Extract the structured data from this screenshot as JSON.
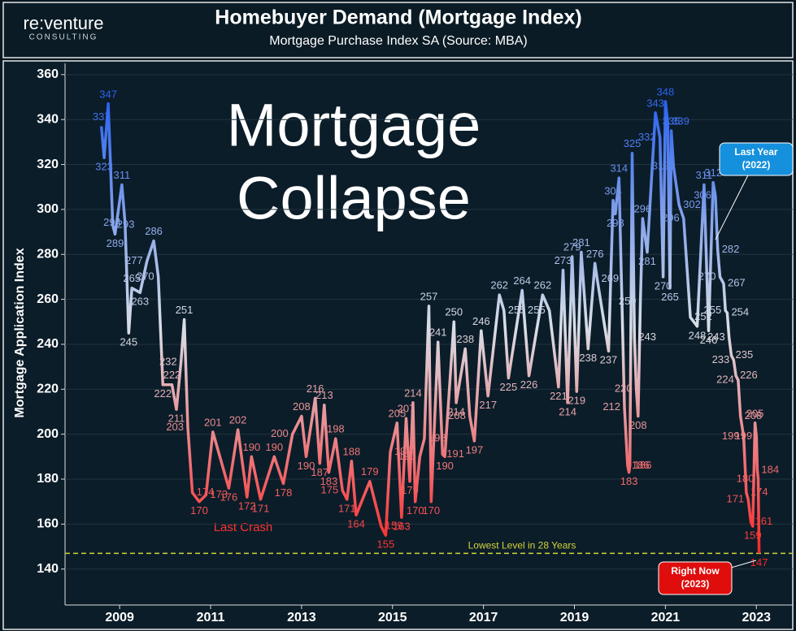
{
  "chart_data": {
    "type": "line",
    "title": "Homebuyer Demand (Mortgage Index)",
    "subtitle": "Mortgage Purchase Index SA (Source: MBA)",
    "logo": {
      "name": "re:venture",
      "sub": "CONSULTING"
    },
    "ylabel": "Mortgage Application Index",
    "headline": [
      "Mortgage",
      "Collapse"
    ],
    "note": "Last Crash",
    "reference_line": {
      "value": 147,
      "label": "Lowest Level in 28 Years",
      "color": "#d4d43a"
    },
    "callouts": [
      {
        "text": "Last Year",
        "sub": "(2022)",
        "color": "#1590dc"
      },
      {
        "text": "Right Now",
        "sub": "(2023)",
        "color": "#e00d0d"
      }
    ],
    "color_scale": {
      "high": "#2a63f0",
      "mid": "#d9dee6",
      "low": "#ff2626"
    },
    "xlim": [
      2007.8,
      2023.8
    ],
    "xticks": [
      2009,
      2011,
      2013,
      2015,
      2017,
      2019,
      2021,
      2023
    ],
    "ylim": [
      124,
      365
    ],
    "yticks": [
      140,
      160,
      180,
      200,
      220,
      240,
      260,
      280,
      300,
      320,
      340,
      360
    ],
    "grid": true,
    "series": [
      {
        "name": "Mortgage Purchase Index SA",
        "x": [
          2008.6,
          2008.66,
          2008.75,
          2008.85,
          2008.9,
          2009.05,
          2009.12,
          2009.2,
          2009.27,
          2009.45,
          2009.6,
          2009.75,
          2009.85,
          2009.95,
          2010.15,
          2010.25,
          2010.35,
          2010.42,
          2010.5,
          2010.6,
          2010.75,
          2010.9,
          2011.05,
          2011.4,
          2011.6,
          2011.8,
          2011.9,
          2012.1,
          2012.4,
          2012.6,
          2012.8,
          2013.0,
          2013.1,
          2013.3,
          2013.4,
          2013.5,
          2013.6,
          2013.75,
          2013.9,
          2014.0,
          2014.1,
          2014.2,
          2014.5,
          2014.75,
          2014.85,
          2014.95,
          2015.1,
          2015.2,
          2015.3,
          2015.38,
          2015.45,
          2015.5,
          2015.6,
          2015.7,
          2015.8,
          2015.85,
          2016.0,
          2016.1,
          2016.15,
          2016.35,
          2016.4,
          2016.6,
          2016.7,
          2016.8,
          2016.95,
          2017.1,
          2017.35,
          2017.45,
          2017.55,
          2017.85,
          2018.0,
          2018.3,
          2018.45,
          2018.65,
          2018.75,
          2018.85,
          2018.95,
          2019.05,
          2019.15,
          2019.3,
          2019.45,
          2019.5,
          2019.75,
          2019.85,
          2019.9,
          2019.98,
          2020.1,
          2020.17,
          2020.2,
          2020.22,
          2020.27,
          2020.32,
          2020.36,
          2020.4,
          2020.45,
          2020.5,
          2020.6,
          2020.78,
          2020.88,
          2020.95,
          2021.0,
          2021.05,
          2021.1,
          2021.13,
          2021.18,
          2021.3,
          2021.4,
          2021.55,
          2021.7,
          2021.85,
          2021.95,
          2022.05,
          2022.1,
          2022.15,
          2022.2,
          2022.28,
          2022.32,
          2022.36,
          2022.4,
          2022.45,
          2022.5,
          2022.55,
          2022.6,
          2022.65,
          2022.72,
          2022.78,
          2022.82,
          2022.88,
          2022.92,
          2022.97,
          2023.0,
          2023.02,
          2023.04,
          2023.06
        ],
        "values": [
          337,
          323,
          347,
          293,
          289,
          311,
          294,
          245,
          265,
          263,
          277,
          286,
          270,
          222,
          222,
          211,
          232,
          251,
          203,
          174,
          170,
          173,
          201,
          176,
          202,
          172,
          190,
          171,
          190,
          178,
          200,
          208,
          190,
          216,
          187,
          213,
          183,
          198,
          175,
          171,
          188,
          164,
          179,
          159,
          155,
          192,
          205,
          163,
          207,
          179,
          214,
          170,
          190,
          198,
          257,
          170,
          241,
          191,
          190,
          250,
          214,
          238,
          208,
          197,
          246,
          217,
          262,
          255,
          225,
          264,
          226,
          262,
          255,
          221,
          273,
          214,
          279,
          219,
          281,
          238,
          276,
          269,
          237,
          304,
          298,
          314,
          212,
          186,
          183,
          186,
          325,
          243,
          220,
          208,
          259,
          296,
          281,
          343,
          332,
          270,
          348,
          339,
          265,
          335,
          319,
          302,
          296,
          252,
          248,
          311,
          246,
          312,
          306,
          282,
          270,
          267,
          255,
          254,
          243,
          235,
          233,
          226,
          224,
          208,
          199,
          174,
          171,
          161,
          159,
          205,
          199,
          184,
          180,
          147
        ]
      }
    ]
  }
}
